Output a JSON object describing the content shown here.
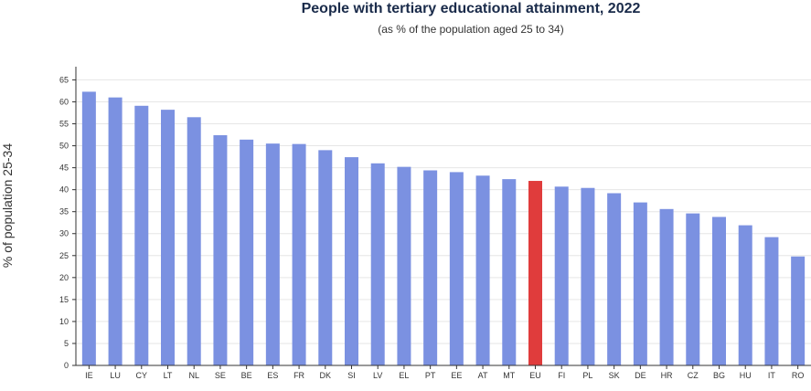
{
  "chart_data": {
    "type": "bar",
    "title": "People with tertiary educational attainment, 2022",
    "subtitle": "(as % of the population aged 25 to 34)",
    "xlabel": "",
    "ylabel": "% of population 25-34",
    "ylim": [
      0,
      68
    ],
    "yticks": [
      0,
      5,
      10,
      15,
      20,
      25,
      30,
      35,
      40,
      45,
      50,
      55,
      60,
      65
    ],
    "grid": true,
    "categories": [
      "IE",
      "LU",
      "CY",
      "LT",
      "NL",
      "SE",
      "BE",
      "ES",
      "FR",
      "DK",
      "SI",
      "LV",
      "EL",
      "PT",
      "EE",
      "AT",
      "MT",
      "EU",
      "FI",
      "PL",
      "SK",
      "DE",
      "HR",
      "CZ",
      "BG",
      "HU",
      "IT",
      "RO"
    ],
    "values": [
      62.3,
      61.0,
      59.1,
      58.2,
      56.5,
      52.4,
      51.4,
      50.5,
      50.4,
      49.0,
      47.4,
      46.0,
      45.2,
      44.4,
      44.0,
      43.2,
      42.4,
      42.0,
      40.7,
      40.4,
      39.2,
      37.1,
      35.6,
      34.6,
      33.8,
      31.9,
      29.2,
      24.8
    ],
    "colors": {
      "bar": "#7b91e1",
      "highlight": "#e03c3c",
      "highlight_category": "EU",
      "grid": "#e6e6e6",
      "axis": "#333333"
    }
  }
}
